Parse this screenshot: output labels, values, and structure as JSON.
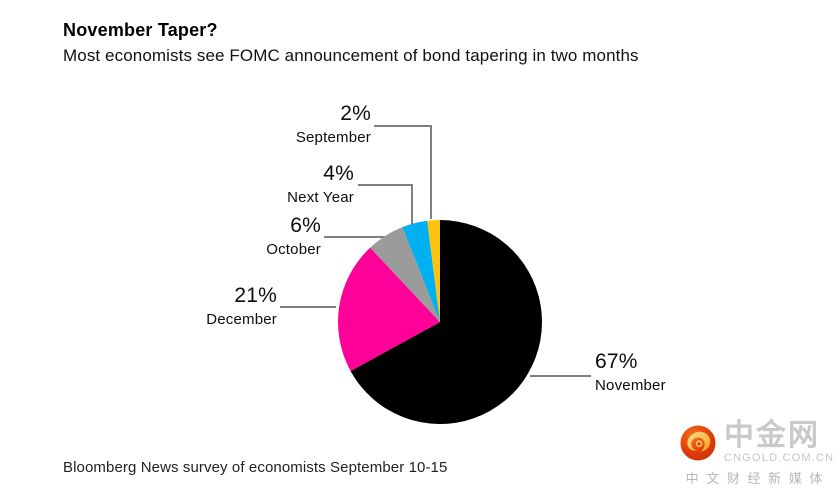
{
  "header": {
    "title": "November Taper?",
    "subtitle": "Most economists see FOMC announcement of bond tapering in two months"
  },
  "footer": {
    "source": "Bloomberg News survey of economists September 10-15"
  },
  "chart_data": {
    "type": "pie",
    "title": "November Taper?",
    "subtitle": "Most economists see FOMC announcement of bond tapering in two months",
    "unit": "%",
    "start_angle_deg": -90,
    "direction": "clockwise",
    "slices": [
      {
        "label": "November",
        "value": 67,
        "pct_label": "67%",
        "color": "#000000"
      },
      {
        "label": "December",
        "value": 21,
        "pct_label": "21%",
        "color": "#ff0099"
      },
      {
        "label": "October",
        "value": 6,
        "pct_label": "6%",
        "color": "#9b9b9b"
      },
      {
        "label": "Next Year",
        "value": 4,
        "pct_label": "4%",
        "color": "#00b0f0"
      },
      {
        "label": "September",
        "value": 2,
        "pct_label": "2%",
        "color": "#ffc20e"
      }
    ],
    "leader_line_color": "#7f7f7f",
    "source": "Bloomberg News survey of economists September 10-15"
  },
  "watermark": {
    "name": "中金网",
    "domain": "CNGOLD.COM.CN",
    "tagline": "中 文 财 经 新 媒 体"
  }
}
